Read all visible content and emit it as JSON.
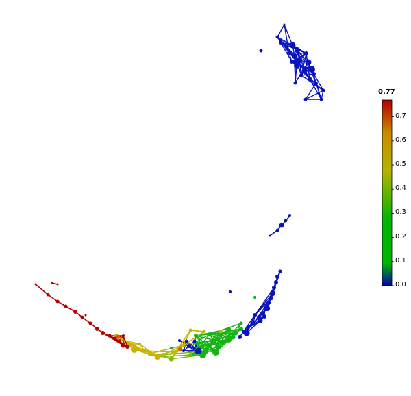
{
  "colorbar": {
    "max_label": "0.77",
    "ticks": [
      "0.7",
      "0.6",
      "0.5",
      "0.4",
      "0.3",
      "0.2",
      "0.1",
      "0.0"
    ],
    "tick_values": [
      0.7,
      0.6,
      0.5,
      0.4,
      0.3,
      0.2,
      0.1,
      0.0
    ],
    "min": 0.0,
    "max": 0.77,
    "gradient": [
      "#0000b4",
      "#00b400",
      "#b4b400",
      "#b4b400",
      "#c84600",
      "#b40000"
    ]
  },
  "palette": {
    "blue": "#0a14b8",
    "green": "#14b414",
    "lime": "#78bc14",
    "yellow": "#c8b400",
    "orange": "#c86400",
    "red": "#b40000"
  }
}
